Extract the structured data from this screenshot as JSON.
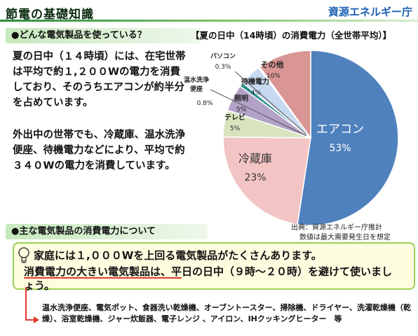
{
  "header": {
    "title": "節電の基礎知識",
    "agency": "資源エネルギー庁"
  },
  "section1": {
    "heading": "●どんな電気製品を使っている？",
    "para1": "夏の日中（１４時頃）には、在宅世帯は平均で約１,２００Wの電力を消費しており、そのうちエアコンが約半分を占めています。",
    "para2": "外出中の世帯でも、冷蔵庫、温水洗浄便座、待機電力などにより、平均で約３４０Wの電力を消費しています。"
  },
  "section2": {
    "heading": "●主な電気製品の消費電力について"
  },
  "callout": {
    "line1": "家庭には１,０００Wを上回る電気製品がたくさんあります。",
    "line2": "消費電力の大きい電気製品は、平日の日中（９時〜２０時）を避けて使いましょう。"
  },
  "appliances": "温水洗浄便座、電気ポット、食器洗い乾燥機、オーブントースター、掃除機、ドライヤー、洗濯乾燥機（乾燥）、浴室乾燥機、ジャー炊飯器、電子レンジ 、アイロン、IHクッキングヒーター　等",
  "source": {
    "line1": "出典：資源エネルギー庁推計",
    "line2": "数値は最大需要発生日を想定"
  },
  "chart_data": {
    "type": "pie",
    "title": "【夏の日中（14時頃）の消費電力（全世帯平均）】",
    "slices": [
      {
        "label": "エアコン",
        "value": 53,
        "value_label": "53%",
        "color": "#4f81bd"
      },
      {
        "label": "冷蔵庫",
        "value": 23,
        "value_label": "23%",
        "color": "#f2c4c4"
      },
      {
        "label": "テレビ",
        "value": 5,
        "value_label": "5%",
        "color": "#d7e4bd"
      },
      {
        "label": "照明",
        "value": 5,
        "value_label": "5%",
        "color": "#b3a2c7"
      },
      {
        "label": "温水洗浄便座",
        "value": 0.8,
        "value_label": "0.8%",
        "color": "#2f8f8f"
      },
      {
        "label": "待機電力",
        "value": 4,
        "value_label": "4%",
        "color": "#c6d9f0"
      },
      {
        "label": "パソコン",
        "value": 0.3,
        "value_label": "0.3%",
        "color": "#e6f0fa"
      },
      {
        "label": "その他",
        "value": 10,
        "value_label": "10%",
        "color": "#d99694"
      }
    ]
  }
}
